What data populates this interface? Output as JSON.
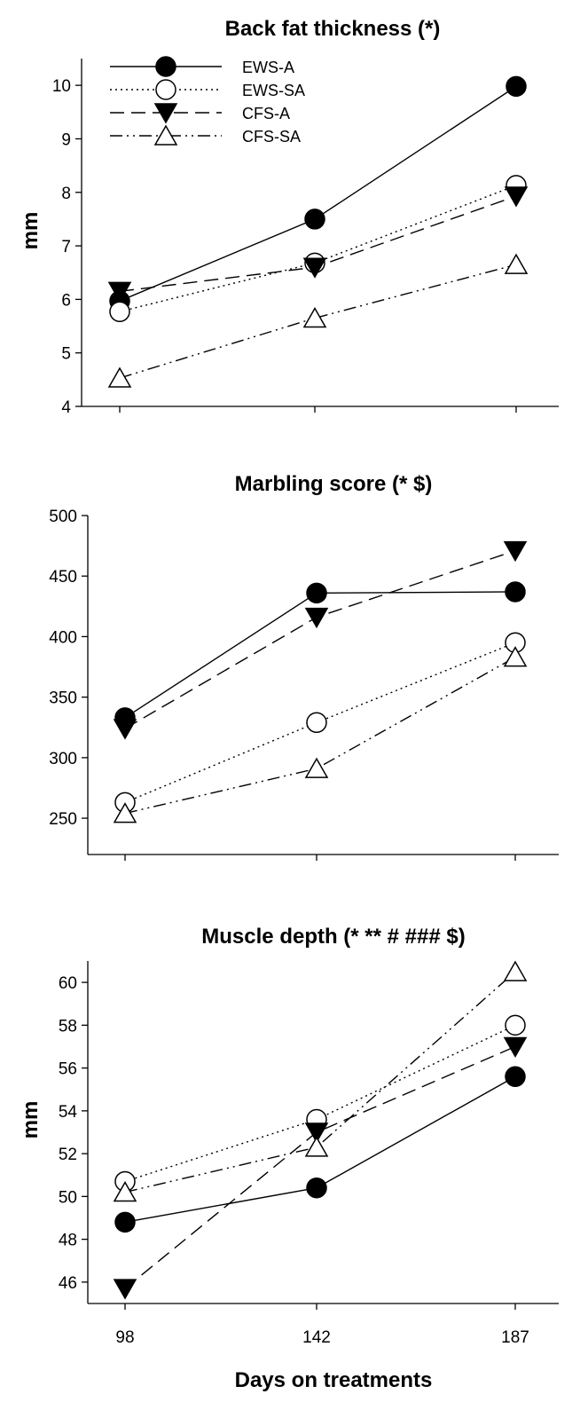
{
  "chart_data": [
    {
      "type": "line",
      "title": "Back fat thickness (*)",
      "ylabel": "mm",
      "xlabel": "",
      "x": [
        98,
        142,
        187
      ],
      "ylim": [
        4,
        10.5
      ],
      "yticks": [
        4,
        5,
        6,
        7,
        8,
        9,
        10
      ],
      "grid": false,
      "legend": "top-left",
      "series": [
        {
          "name": "EWS-A",
          "marker": "filled-circle",
          "line": "solid",
          "values": [
            5.97,
            7.5,
            9.98
          ]
        },
        {
          "name": "EWS-SA",
          "marker": "open-circle",
          "line": "dotted",
          "values": [
            5.77,
            6.68,
            8.13
          ]
        },
        {
          "name": "CFS-A",
          "marker": "filled-triangle-down",
          "line": "dashed",
          "values": [
            6.15,
            6.6,
            7.93
          ]
        },
        {
          "name": "CFS-SA",
          "marker": "open-triangle-up",
          "line": "dash-dot",
          "values": [
            4.53,
            5.65,
            6.65
          ]
        }
      ]
    },
    {
      "type": "line",
      "title": "Marbling score (* $)",
      "ylabel": "",
      "xlabel": "",
      "x": [
        98,
        142,
        187
      ],
      "ylim": [
        220,
        500
      ],
      "yticks": [
        250,
        300,
        350,
        400,
        450,
        500
      ],
      "grid": false,
      "series": [
        {
          "name": "EWS-A",
          "values": [
            333,
            436,
            437
          ]
        },
        {
          "name": "EWS-SA",
          "values": [
            263,
            329,
            395
          ]
        },
        {
          "name": "CFS-A",
          "values": [
            324,
            416,
            471
          ]
        },
        {
          "name": "CFS-SA",
          "values": [
            254,
            291,
            383
          ]
        }
      ]
    },
    {
      "type": "line",
      "title": "Muscle depth (* ** # ### $)",
      "ylabel": "mm",
      "xlabel": "Days on treatments",
      "x": [
        98,
        142,
        187
      ],
      "ylim": [
        45,
        61
      ],
      "yticks": [
        46,
        48,
        50,
        52,
        54,
        56,
        58,
        60
      ],
      "xticks": [
        98,
        142,
        187
      ],
      "grid": false,
      "series": [
        {
          "name": "EWS-A",
          "values": [
            48.8,
            50.4,
            55.6
          ]
        },
        {
          "name": "EWS-SA",
          "values": [
            50.7,
            53.6,
            58.0
          ]
        },
        {
          "name": "CFS-A",
          "values": [
            45.7,
            53.0,
            57.0
          ]
        },
        {
          "name": "CFS-SA",
          "values": [
            50.2,
            52.3,
            60.5
          ]
        }
      ]
    }
  ]
}
